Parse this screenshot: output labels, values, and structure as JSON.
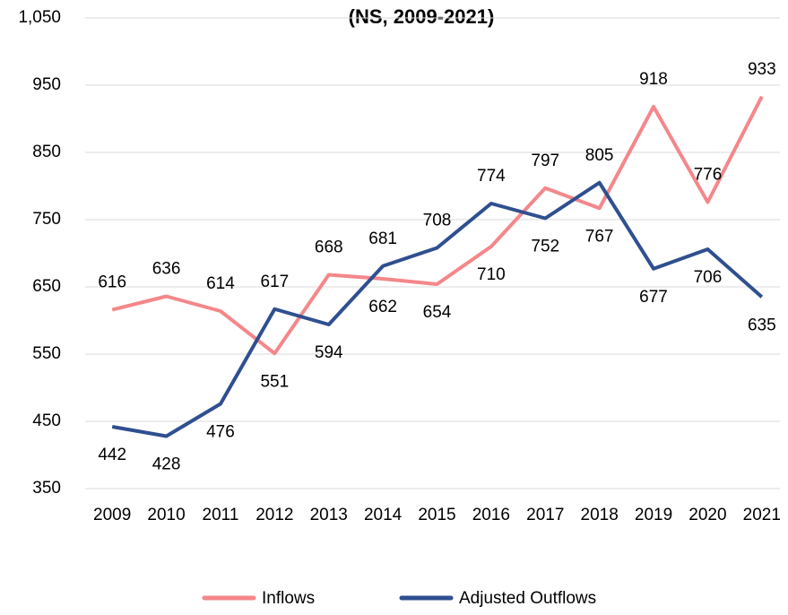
{
  "chart_data": {
    "type": "line",
    "title": "(NS, 2009-2021)",
    "categories": [
      "2009",
      "2010",
      "2011",
      "2012",
      "2013",
      "2014",
      "2015",
      "2016",
      "2017",
      "2018",
      "2019",
      "2020",
      "2021"
    ],
    "series": [
      {
        "name": "Inflows",
        "color": "#f4878a",
        "values": [
          616,
          636,
          614,
          551,
          668,
          662,
          654,
          710,
          797,
          767,
          918,
          776,
          933
        ]
      },
      {
        "name": "Adjusted Outflows",
        "color": "#2f4f8f",
        "values": [
          442,
          428,
          476,
          617,
          594,
          681,
          708,
          774,
          752,
          805,
          677,
          706,
          635
        ]
      }
    ],
    "ylim": [
      350,
      1050
    ],
    "yticks": [
      350,
      450,
      550,
      650,
      750,
      850,
      950,
      {
        "value": 1050,
        "label": "1,050"
      }
    ],
    "grid": true,
    "legend": "bottom"
  }
}
